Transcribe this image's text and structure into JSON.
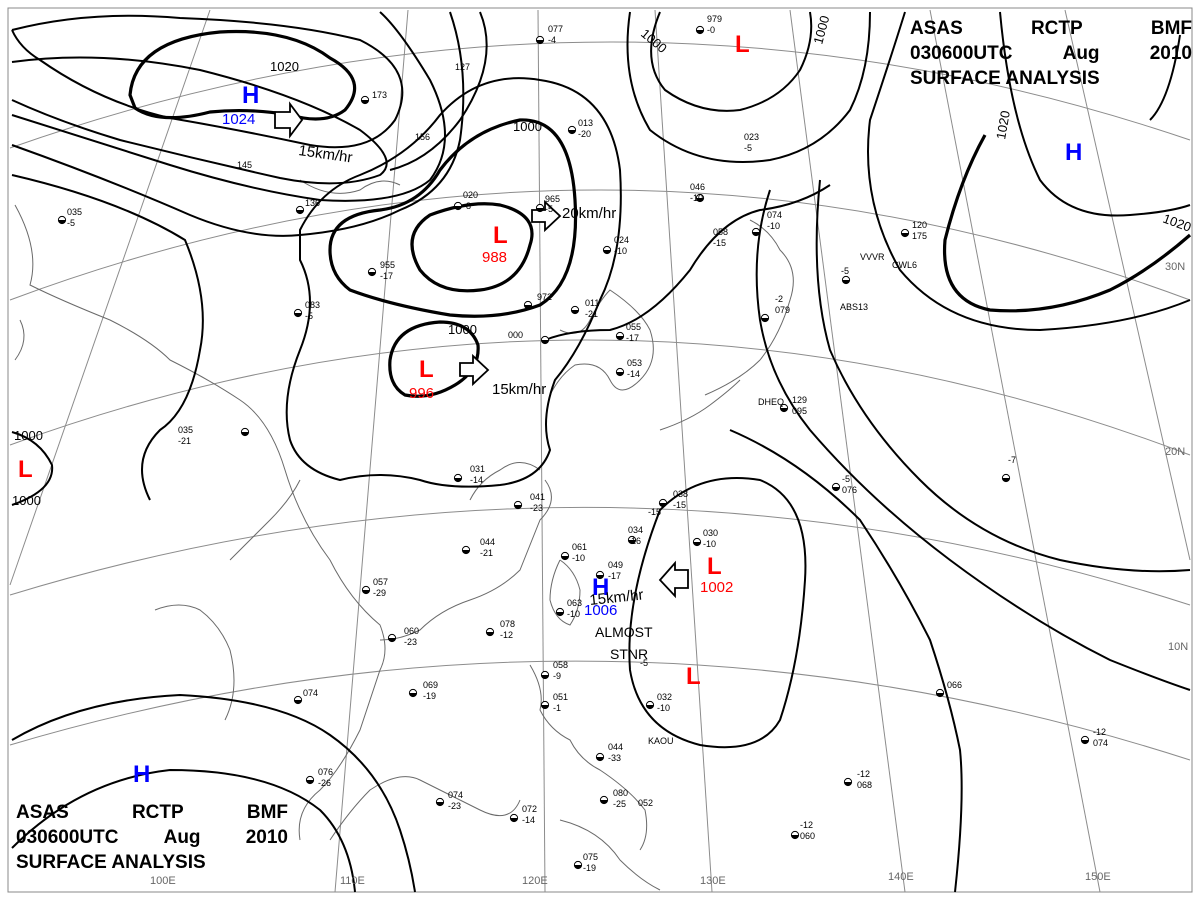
{
  "header": {
    "line1": [
      "ASAS",
      "RCTP",
      "BMF"
    ],
    "line2": [
      "030600UTC",
      "Aug",
      "2010"
    ],
    "line3": "SURFACE ANALYSIS"
  },
  "colors": {
    "high": "#0000ff",
    "low": "#ff0000",
    "isobar": "#000000",
    "grid": "#888888",
    "coast": "#666666"
  },
  "pressure_centers": [
    {
      "type": "H",
      "value": "1024"
    },
    {
      "type": "L",
      "value": "988"
    },
    {
      "type": "L",
      "value": "996"
    },
    {
      "type": "H",
      "value": "1006"
    },
    {
      "type": "L",
      "value": "1002"
    },
    {
      "type": "L",
      "value": ""
    },
    {
      "type": "L",
      "value": ""
    },
    {
      "type": "L",
      "value": ""
    },
    {
      "type": "H",
      "value": ""
    },
    {
      "type": "H",
      "value": ""
    }
  ],
  "isobar_labels": [
    "1020",
    "1000",
    "1000",
    "1000",
    "1000",
    "1000",
    "1020",
    "1020",
    "1000"
  ],
  "motion_labels": [
    "15km/hr",
    "20km/hr",
    "15km/hr",
    "15km/hr"
  ],
  "annotation": {
    "line1": "ALMOST",
    "line2": "STNR"
  },
  "longitude_labels": [
    "100E",
    "110E",
    "120E",
    "130E",
    "140E",
    "150E"
  ],
  "latitude_labels": [
    "30N",
    "20N",
    "10N"
  ],
  "station_plots": [
    "077",
    "-4",
    "979",
    "-0",
    "127",
    "173",
    "156",
    "145",
    "136",
    "955",
    "-17",
    "965",
    "-5",
    "972",
    "011",
    "-21",
    "000",
    "024",
    "-10",
    "013",
    "-20",
    "023",
    "-5",
    "046",
    "-10",
    "058",
    "-15",
    "074",
    "-10",
    "020",
    "-8",
    "055",
    "-17",
    "053",
    "-14",
    "083",
    "-5",
    "035",
    "-5",
    "035",
    "-21",
    "031",
    "-14",
    "041",
    "-23",
    "044",
    "-21",
    "061",
    "-10",
    "049",
    "-17",
    "063",
    "-10",
    "057",
    "-29",
    "060",
    "-23",
    "078",
    "-12",
    "069",
    "-19",
    "074",
    "076",
    "-26",
    "074",
    "-23",
    "072",
    "-14",
    "075",
    "-19",
    "058",
    "-9",
    "051",
    "-1",
    "044",
    "-33",
    "080",
    "-25",
    "052",
    "038",
    "-15",
    "034",
    "-16",
    "030",
    "-10",
    "032",
    "-10",
    "066",
    "-12",
    "068",
    "-12",
    "060",
    "-12",
    "074",
    "-5",
    "076",
    "-7",
    "129",
    "095",
    "-2",
    "079",
    "-5",
    "120",
    "175",
    "-5",
    "KAOU",
    "VVVR",
    "ABS13",
    "CWL6",
    "DHEQ",
    "-15",
    "-6"
  ]
}
